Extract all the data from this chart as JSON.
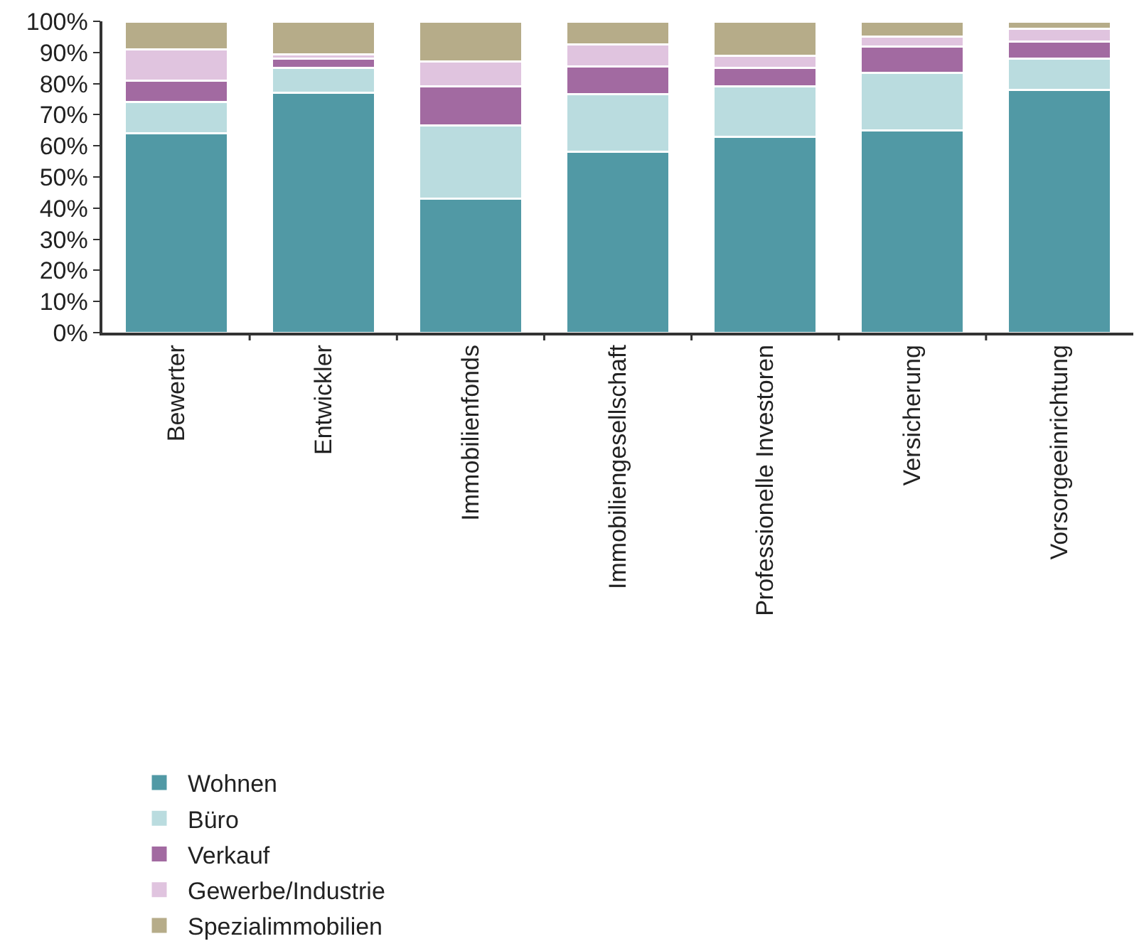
{
  "chart_data": {
    "type": "bar",
    "stacked": true,
    "categories": [
      "Bewerter",
      "Entwickler",
      "Immobilienfonds",
      "Immobiliengesellschaft",
      "Professionelle Investoren",
      "Versicherung",
      "Vorsorgeeinrichtung"
    ],
    "series": [
      {
        "name": "Wohnen",
        "color": "#5199a5",
        "values": [
          64,
          77,
          43,
          58,
          63,
          65,
          78
        ]
      },
      {
        "name": "Büro",
        "color": "#badcdf",
        "values": [
          10,
          8,
          23.5,
          18.5,
          16,
          18.5,
          10
        ]
      },
      {
        "name": "Verkauf",
        "color": "#a26aa1",
        "values": [
          7,
          3,
          12.5,
          9,
          6,
          8.5,
          5.5
        ]
      },
      {
        "name": "Gewerbe/Industrie",
        "color": "#e0c4df",
        "values": [
          10,
          1.5,
          8,
          7,
          4,
          3,
          4
        ]
      },
      {
        "name": "Spezialimmobilien",
        "color": "#b6ac89",
        "values": [
          9,
          10.5,
          13,
          7.5,
          11,
          5,
          2.5
        ]
      }
    ],
    "ylim": [
      0,
      100
    ],
    "yticks": [
      {
        "value": 0,
        "label": "0%"
      },
      {
        "value": 10,
        "label": "10%"
      },
      {
        "value": 20,
        "label": "20%"
      },
      {
        "value": 30,
        "label": "30%"
      },
      {
        "value": 40,
        "label": "40%"
      },
      {
        "value": 50,
        "label": "50%"
      },
      {
        "value": 60,
        "label": "60%"
      },
      {
        "value": 70,
        "label": "70%"
      },
      {
        "value": 80,
        "label": "80%"
      },
      {
        "value": 90,
        "label": "90%"
      },
      {
        "value": 100,
        "label": "100%"
      }
    ],
    "grid": false,
    "legend": "bottom"
  }
}
